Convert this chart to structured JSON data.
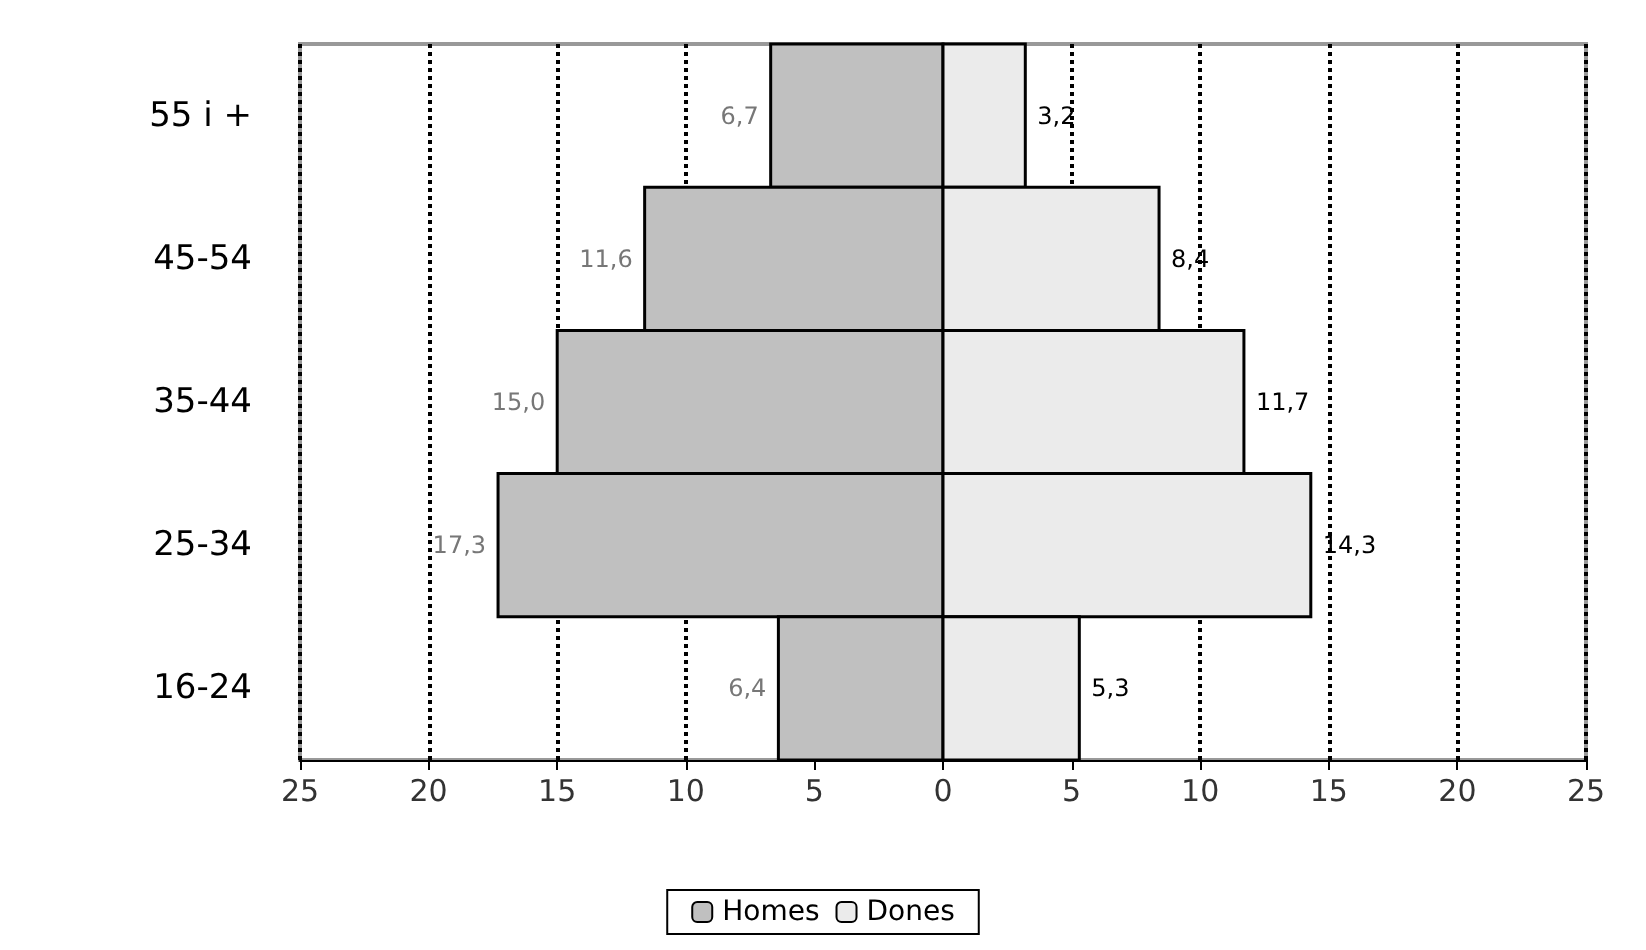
{
  "chart_data": {
    "type": "bar",
    "orientation": "horizontal",
    "categories": [
      "55 i +",
      "45-54",
      "35-44",
      "25-34",
      "16-24"
    ],
    "series": [
      {
        "name": "Homes",
        "color": "#c0c0c0",
        "base": [
          -6.7,
          -11.6,
          -15.0,
          -17.3,
          -6.4
        ],
        "values": [
          6.7,
          11.6,
          15.0,
          17.3,
          6.4
        ],
        "value_labels": [
          "6,7",
          "11,6",
          "15,0",
          "17,3",
          "6,4"
        ]
      },
      {
        "name": "Dones",
        "color": "#ebebeb",
        "values": [
          3.2,
          8.4,
          11.7,
          14.3,
          5.3
        ],
        "value_labels": [
          "3,2",
          "8,4",
          "11,7",
          "14,3",
          "5,3"
        ]
      }
    ],
    "xlim": [
      -25,
      25
    ],
    "xticks": [
      {
        "value": -25,
        "label": "25"
      },
      {
        "value": -20,
        "label": "20"
      },
      {
        "value": -15,
        "label": "15"
      },
      {
        "value": -10,
        "label": "10"
      },
      {
        "value": -5,
        "label": "5"
      },
      0,
      5,
      10,
      15,
      20,
      25
    ],
    "grid": "x",
    "line_style": "dotted",
    "legend": "bottom"
  }
}
